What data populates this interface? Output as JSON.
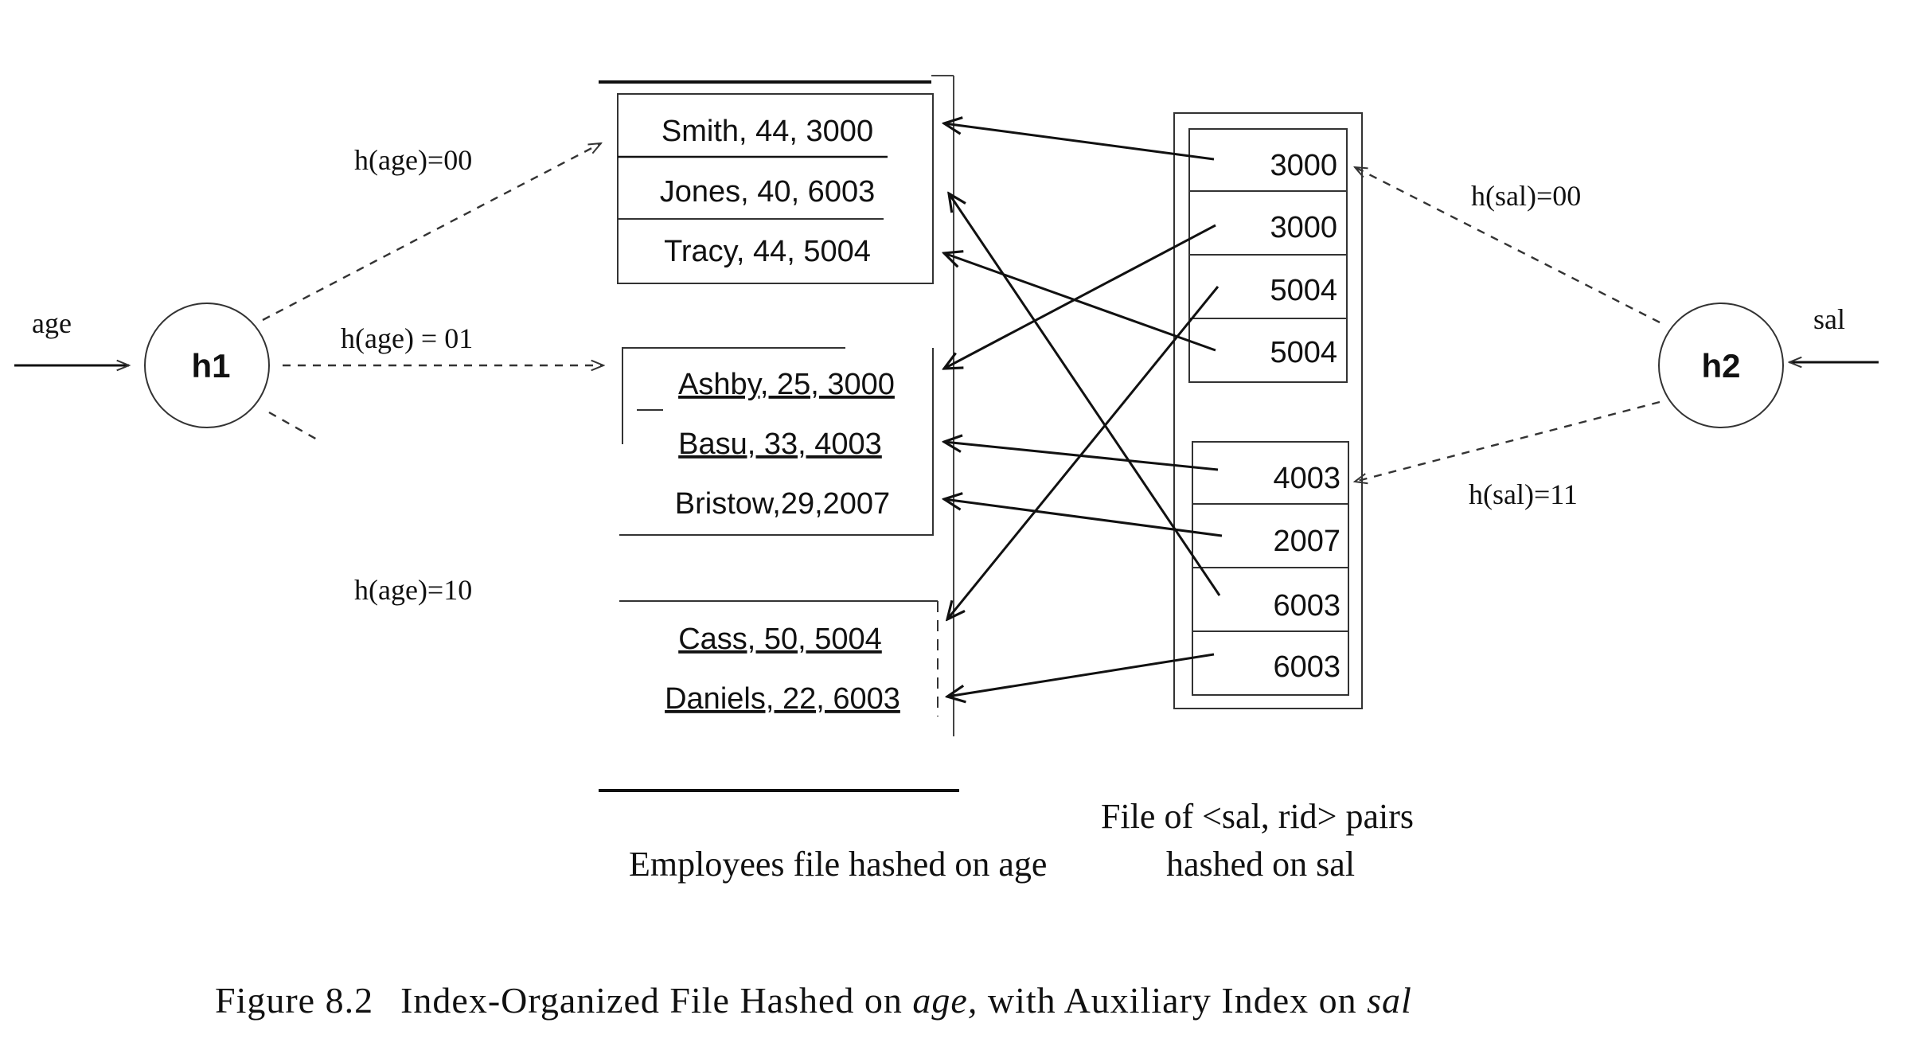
{
  "hash_functions": {
    "h1": {
      "label": "h1",
      "input_label": "age"
    },
    "h2": {
      "label": "h2",
      "input_label": "sal"
    }
  },
  "employee_buckets": [
    {
      "hash_label": "h(age)=00",
      "records": [
        "Smith, 44, 3000",
        "Jones, 40, 6003",
        "Tracy, 44, 5004"
      ]
    },
    {
      "hash_label": "h(age) = 01",
      "records": [
        "Ashby, 25, 3000",
        "Basu, 33, 4003",
        "Bristow,29,2007"
      ]
    },
    {
      "hash_label": "h(age)=10",
      "records": [
        "Cass, 50, 5004",
        "Daniels, 22, 6003"
      ]
    }
  ],
  "sal_buckets": [
    {
      "hash_label": "h(sal)=00",
      "entries": [
        "3000",
        "3000",
        "5004",
        "5004"
      ]
    },
    {
      "hash_label": "h(sal)=11",
      "entries": [
        "4003",
        "2007",
        "6003",
        "6003"
      ]
    }
  ],
  "captions": {
    "sal_file_line1": "File of <sal, rid> pairs",
    "employees_file": "Employees file hashed on age",
    "sal_file_line2": "hashed on sal"
  },
  "figure_caption": {
    "number": "Figure 8.2",
    "text_before": "Index-Organized File Hashed on ",
    "emph1": "age,",
    "text_middle": " with Auxiliary Index on ",
    "emph2": "sal"
  }
}
